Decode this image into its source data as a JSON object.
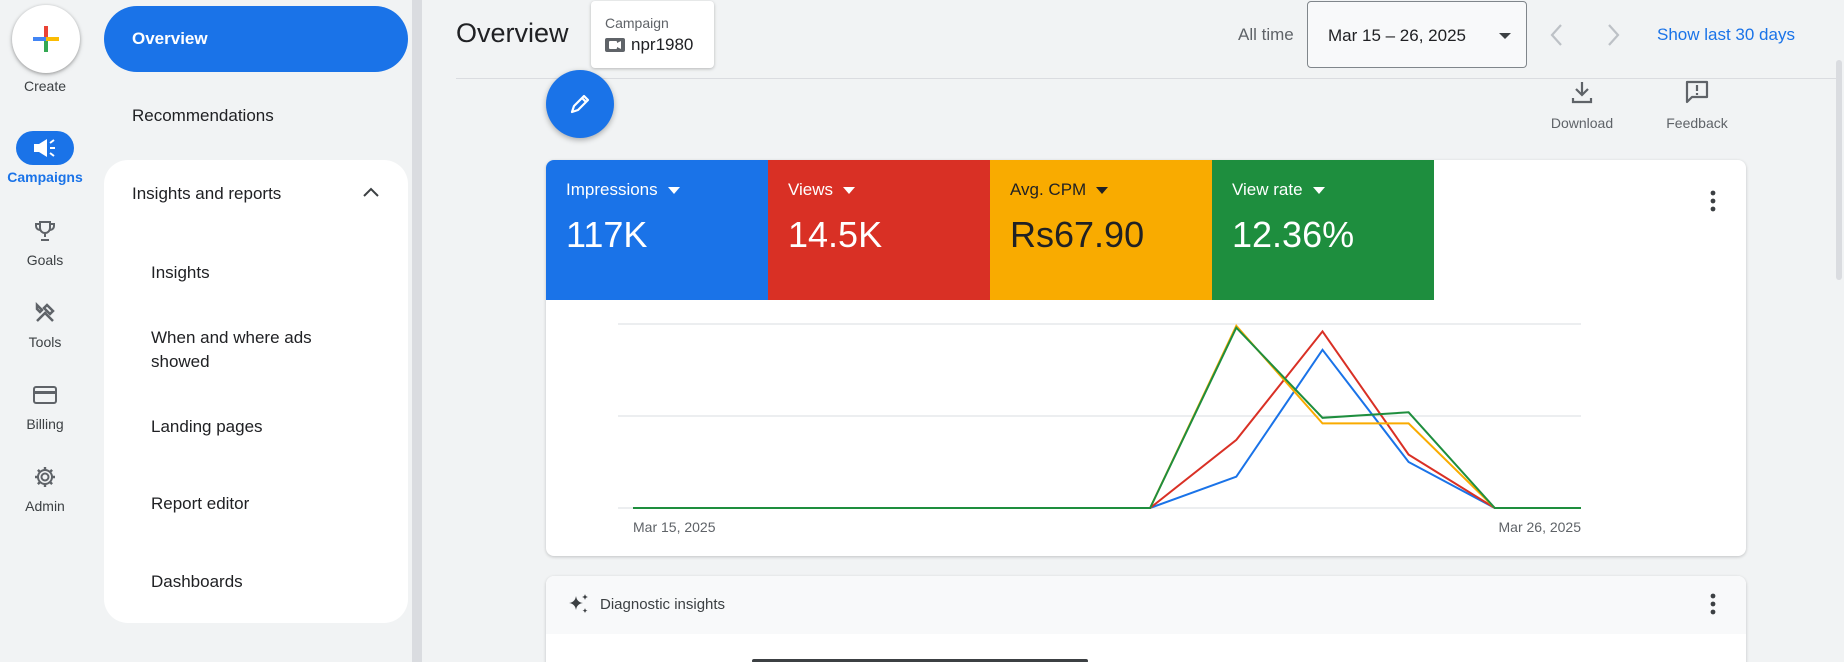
{
  "rail": {
    "create_label": "Create",
    "items": [
      {
        "label": "Campaigns",
        "icon": "megaphone-icon",
        "active": true
      },
      {
        "label": "Goals",
        "icon": "trophy-icon"
      },
      {
        "label": "Tools",
        "icon": "tools-icon"
      },
      {
        "label": "Billing",
        "icon": "credit-card-icon"
      },
      {
        "label": "Admin",
        "icon": "gear-icon"
      }
    ]
  },
  "nav": {
    "overview": "Overview",
    "recommendations": "Recommendations",
    "section_title": "Insights and reports",
    "sub_items": [
      "Insights",
      "When and where ads showed",
      "Landing pages",
      "Report editor",
      "Dashboards"
    ]
  },
  "header": {
    "title": "Overview",
    "campaign_label": "Campaign",
    "campaign_value": "npr1980",
    "all_time": "All time",
    "date_range": "Mar 15 – 26, 2025",
    "show_last": "Show last 30 days"
  },
  "toolbar": {
    "download_label": "Download",
    "feedback_label": "Feedback"
  },
  "metrics": [
    {
      "name": "Impressions",
      "value": "117K",
      "color": "#1a73e8"
    },
    {
      "name": "Views",
      "value": "14.5K",
      "color": "#d93025"
    },
    {
      "name": "Avg. CPM",
      "value": "Rs67.90",
      "color": "#f9ab00"
    },
    {
      "name": "View rate",
      "value": "12.36%",
      "color": "#1e8e3e"
    }
  ],
  "chart_data": {
    "type": "line",
    "x": [
      "Mar 15, 2025",
      "Mar 16, 2025",
      "Mar 17, 2025",
      "Mar 18, 2025",
      "Mar 19, 2025",
      "Mar 20, 2025",
      "Mar 21, 2025",
      "Mar 22, 2025",
      "Mar 23, 2025",
      "Mar 24, 2025",
      "Mar 25, 2025",
      "Mar 26, 2025"
    ],
    "x_tick_labels": [
      "Mar 15, 2025",
      "Mar 26, 2025"
    ],
    "ylim": [
      0,
      1
    ],
    "grid": true,
    "series": [
      {
        "name": "Impressions",
        "color": "#1a73e8",
        "values": [
          0,
          0,
          0,
          0,
          0,
          0,
          0,
          0.17,
          0.86,
          0.25,
          0,
          0
        ]
      },
      {
        "name": "Views",
        "color": "#d93025",
        "values": [
          0,
          0,
          0,
          0,
          0,
          0,
          0,
          0.37,
          0.96,
          0.29,
          0,
          0
        ]
      },
      {
        "name": "Avg. CPM",
        "color": "#f9ab00",
        "values": [
          0,
          0,
          0,
          0,
          0,
          0,
          0,
          0.99,
          0.46,
          0.46,
          0,
          0
        ]
      },
      {
        "name": "View rate",
        "color": "#1e8e3e",
        "values": [
          0,
          0,
          0,
          0,
          0,
          0,
          0,
          0.98,
          0.49,
          0.52,
          0,
          0
        ]
      }
    ]
  },
  "diagnostic": {
    "title": "Diagnostic insights"
  }
}
